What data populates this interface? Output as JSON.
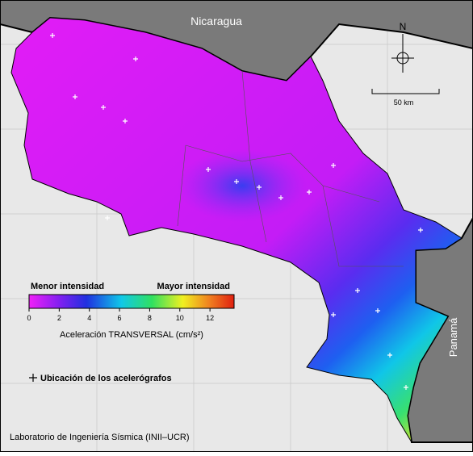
{
  "map": {
    "labels": {
      "north_country": "Nicaragua",
      "south_country": "Panamá",
      "north_arrow": "N",
      "scale": "50 km"
    },
    "colorbar": {
      "low_label": "Menor intensidad",
      "high_label": "Mayor intensidad",
      "range": [
        0,
        13.6
      ],
      "ticks": [
        0,
        2,
        4,
        6,
        8,
        10,
        12
      ],
      "title": "Aceleración TRANSVERSAL (cm/s²)"
    },
    "legend": "Ubicación de los acelerógrafos",
    "credit": "Laboratorio de Ingeniería Sísmica (INII–UCR)"
  }
}
